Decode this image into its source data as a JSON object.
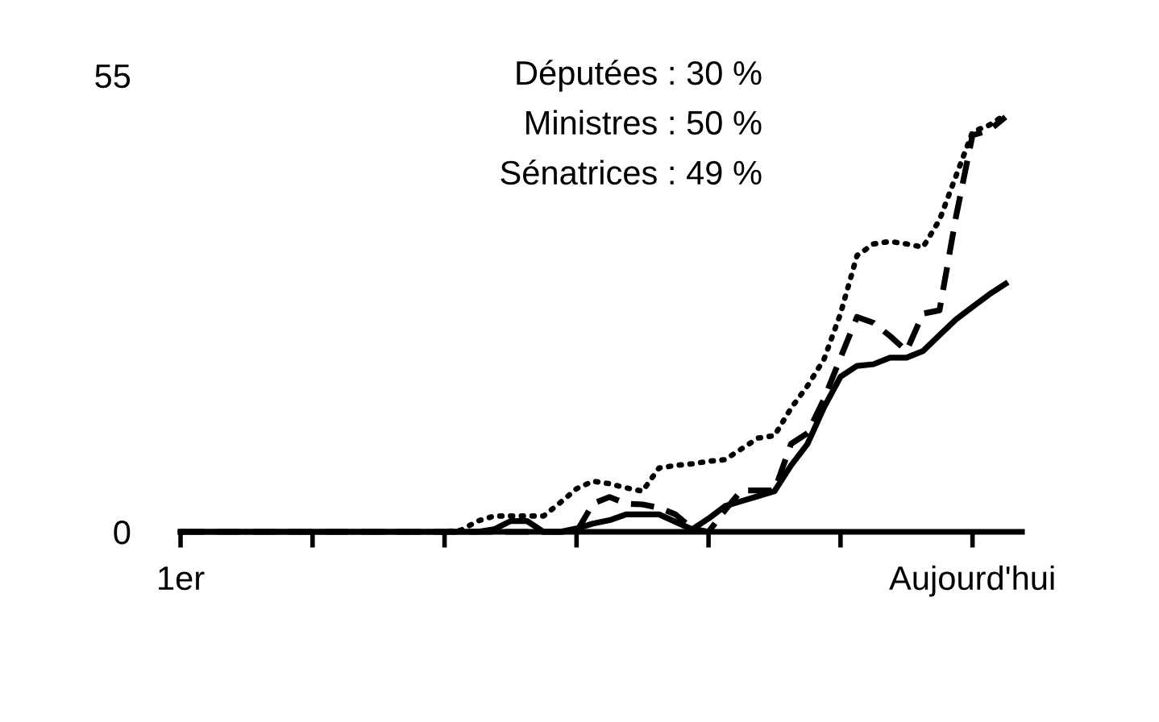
{
  "chart_data": {
    "type": "line",
    "annotations": [
      "Députées : 30 %",
      "Ministres : 50 %",
      "Sénatrices : 49 %"
    ],
    "categories": [
      "1er",
      null,
      null,
      null,
      null,
      null,
      null,
      null,
      null,
      null,
      null,
      null,
      null,
      null,
      null,
      null,
      null,
      null,
      null,
      null,
      null,
      null,
      null,
      null,
      null,
      null,
      null,
      null,
      null,
      null,
      null,
      null,
      null,
      null,
      null,
      null,
      null,
      null,
      null,
      null,
      null,
      null,
      null,
      null,
      null,
      null,
      null,
      null,
      "Aujourd'hui",
      null,
      null
    ],
    "ylim": [
      0,
      55
    ],
    "yticks": [
      0,
      55
    ],
    "grid": false,
    "series": [
      {
        "color": "#000000",
        "line_style": "solid",
        "values": [
          0,
          0,
          0,
          0,
          0,
          0,
          0,
          0,
          0,
          0,
          0,
          0,
          0,
          0,
          0,
          0,
          0,
          0,
          0,
          0.3,
          1.3,
          1.3,
          0,
          0,
          0.4,
          1,
          1.4,
          2.1,
          2.1,
          2.1,
          1.2,
          0.3,
          1.6,
          3.1,
          3.7,
          4.3,
          4.9,
          8,
          10.6,
          15,
          18.7,
          20,
          20.2,
          21,
          21,
          21.8,
          23.7,
          25.6,
          27.1,
          28.6,
          29.9
        ]
      },
      {
        "color": "#000000",
        "line_style": "dashed",
        "values": [
          0,
          0,
          0,
          0,
          0,
          0,
          0,
          0,
          0,
          0,
          0,
          0,
          0,
          0,
          0,
          0,
          0,
          0,
          0,
          0,
          0,
          0,
          0,
          0,
          0,
          3.4,
          4.2,
          3.4,
          3.3,
          2.9,
          2.1,
          0.4,
          0,
          2.6,
          5,
          5,
          5,
          10.6,
          11.9,
          16,
          21,
          25.9,
          25.2,
          23.6,
          21.8,
          26.3,
          26.7,
          38,
          47.8,
          48.4,
          50
        ]
      },
      {
        "color": "#000000",
        "line_style": "dotted",
        "values": [
          0,
          0,
          0,
          0,
          0,
          0,
          0,
          0,
          0,
          0,
          0,
          0,
          0,
          0,
          0,
          0,
          0,
          0.2,
          1.3,
          1.9,
          1.9,
          1.9,
          1.9,
          3.5,
          5.2,
          6.1,
          5.8,
          5.3,
          4.9,
          7.7,
          8,
          8.2,
          8.5,
          8.7,
          10,
          11.3,
          11.6,
          14.9,
          17.6,
          20.8,
          26.3,
          33.3,
          34.7,
          35,
          34.7,
          34.3,
          37.6,
          42.9,
          48.2,
          49,
          50.3
        ]
      }
    ]
  }
}
